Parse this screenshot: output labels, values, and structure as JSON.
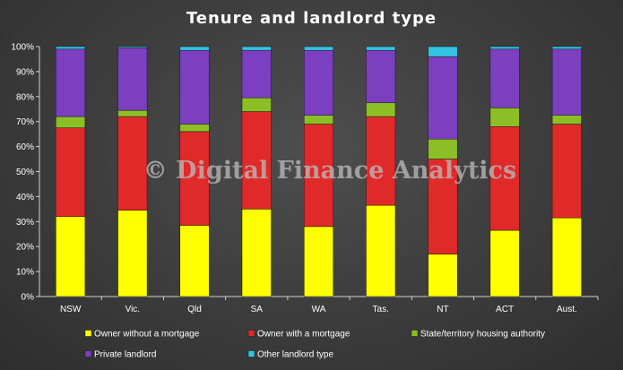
{
  "chart_data": {
    "type": "bar",
    "stacked": true,
    "title": "Tenure and landlord type",
    "watermark": "© Digital Finance Analytics",
    "categories": [
      "NSW",
      "Vic.",
      "Qld",
      "SA",
      "WA",
      "Tas.",
      "NT",
      "ACT",
      "Aust."
    ],
    "ylim": [
      0,
      100
    ],
    "yticks": [
      "0%",
      "10%",
      "20%",
      "30%",
      "40%",
      "50%",
      "60%",
      "70%",
      "80%",
      "90%",
      "100%"
    ],
    "legend_position": "bottom",
    "grid": false,
    "series": [
      {
        "name": "Owner without a mortgage",
        "color": "#ffff00",
        "values": [
          32,
          34.5,
          28.5,
          35,
          28,
          36.5,
          17,
          26.5,
          31.5
        ]
      },
      {
        "name": "Owner with a mortgage",
        "color": "#e02a2a",
        "values": [
          35.5,
          37.5,
          37.5,
          39,
          41,
          35.5,
          38,
          41.5,
          37.5
        ]
      },
      {
        "name": "State/territory housing authority",
        "color": "#8cbf26",
        "values": [
          4.5,
          2.5,
          3,
          5.5,
          3.5,
          5.5,
          8,
          7.5,
          3.5
        ]
      },
      {
        "name": "Private landlord",
        "color": "#7b3fbf",
        "values": [
          27,
          25,
          29.5,
          19,
          26,
          21,
          33,
          23.5,
          26.5
        ]
      },
      {
        "name": "Other landlord type",
        "color": "#33c3e0",
        "values": [
          1,
          0.5,
          1.5,
          1.5,
          1.5,
          1.5,
          4,
          1,
          1
        ]
      }
    ]
  }
}
